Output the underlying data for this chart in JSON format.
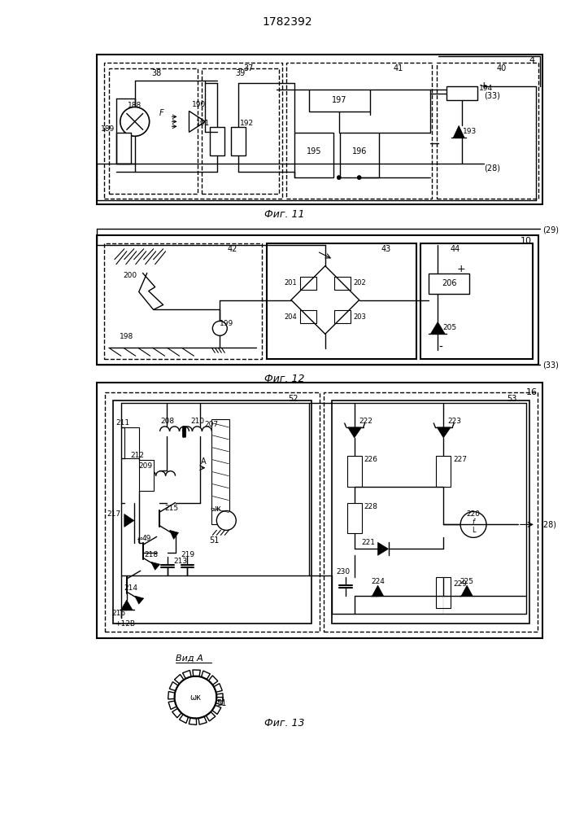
{
  "title": "1782392",
  "fig11_label": "Фиг. 11",
  "fig12_label": "Фиг. 12",
  "fig13_label": "Фиг. 13",
  "fig13b_label": "Вид A"
}
